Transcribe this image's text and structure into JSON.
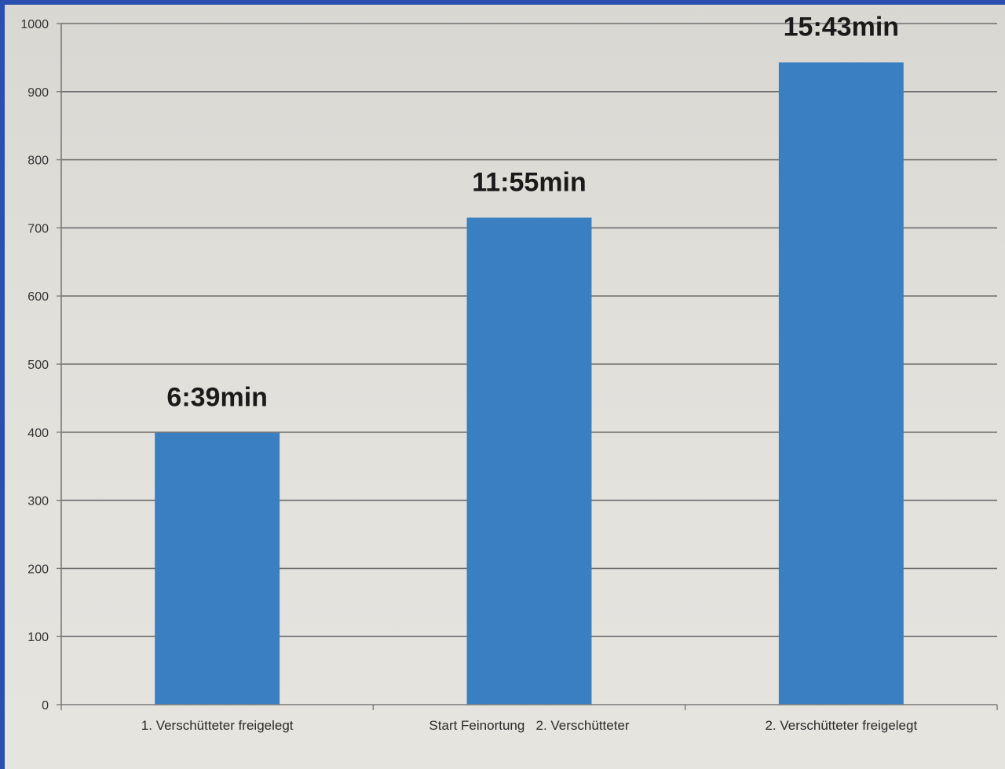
{
  "chart_data": {
    "type": "bar",
    "categories": [
      "1. Verschütteter freigelegt",
      "Start Feinortung   2. Verschütteter",
      "2. Verschütteter freigelegt"
    ],
    "values": [
      399,
      715,
      943
    ],
    "data_labels": [
      "6:39min",
      "11:55min",
      "15:43min"
    ],
    "ylim": [
      0,
      1000
    ],
    "yticks": [
      0,
      100,
      200,
      300,
      400,
      500,
      600,
      700,
      800,
      900,
      1000
    ],
    "grid": true,
    "legend": "none",
    "colors": {
      "bar": "#3a7fc1",
      "grid": "#6e6e6e",
      "axis": "#7a7a7a"
    }
  }
}
